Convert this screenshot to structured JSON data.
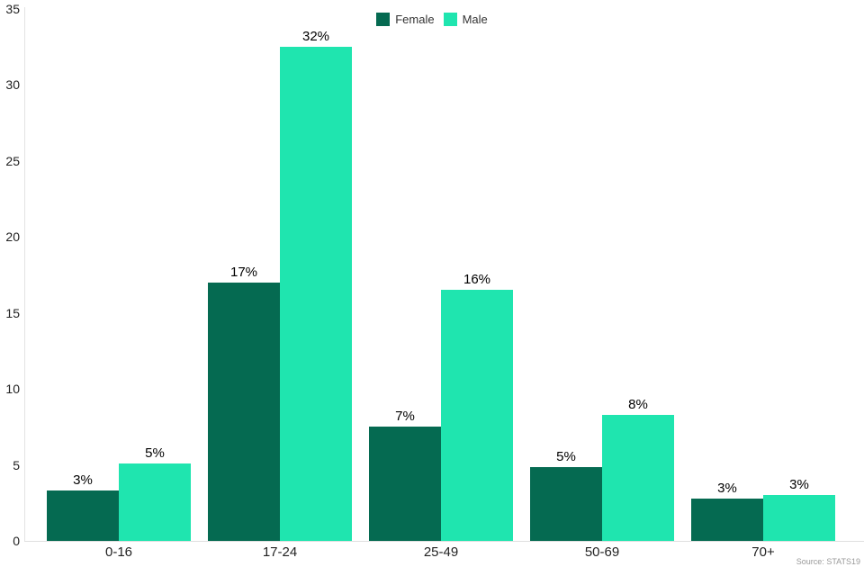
{
  "chart_data": {
    "type": "bar",
    "title": "",
    "xlabel": "",
    "ylabel": "",
    "categories": [
      "0-16",
      "17-24",
      "25-49",
      "50-69",
      "70+"
    ],
    "series": [
      {
        "name": "Female",
        "color": "#056A51",
        "values": [
          3.3,
          17.0,
          7.5,
          4.85,
          2.8
        ],
        "labels": [
          "3%",
          "17%",
          "7%",
          "5%",
          "3%"
        ]
      },
      {
        "name": "Male",
        "color": "#1FE5AF",
        "values": [
          5.1,
          32.5,
          16.5,
          8.3,
          3.0
        ],
        "labels": [
          "5%",
          "32%",
          "16%",
          "8%",
          "3%"
        ]
      }
    ],
    "ylim": [
      0,
      35
    ],
    "yticks": [
      0,
      5,
      10,
      15,
      20,
      25,
      30,
      35
    ],
    "grid": false,
    "legend_position": "top-center"
  },
  "credits": {
    "text": "Source: STATS19"
  }
}
